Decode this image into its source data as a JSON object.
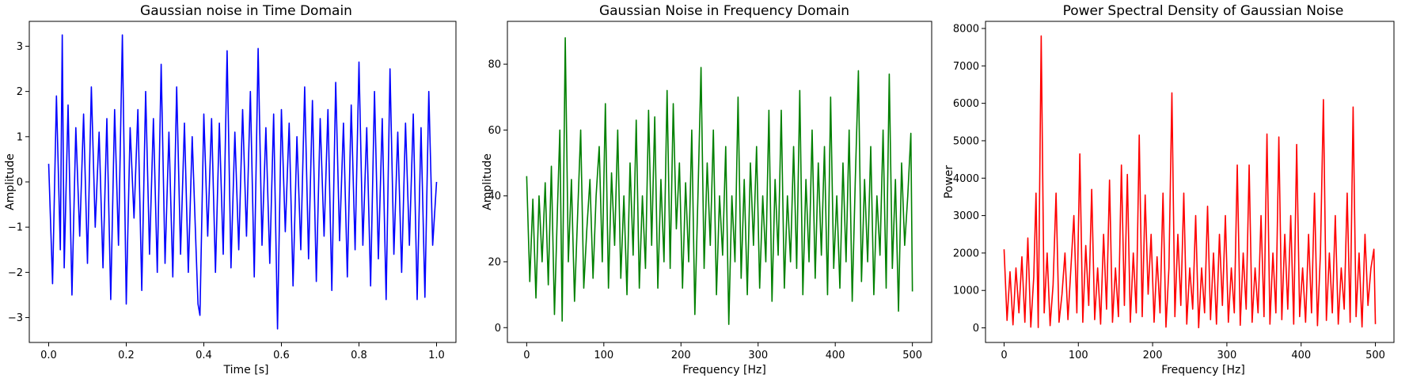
{
  "chart_data": [
    {
      "type": "line",
      "title": "Gaussian noise in Time Domain",
      "xlabel": "Time [s]",
      "ylabel": "Amplitude",
      "xlim": [
        -0.05,
        1.05
      ],
      "ylim": [
        -3.55,
        3.55
      ],
      "xticks": [
        0.0,
        0.2,
        0.4,
        0.6,
        0.8,
        1.0
      ],
      "xtick_labels": [
        "0.0",
        "0.2",
        "0.4",
        "0.6",
        "0.8",
        "1.0"
      ],
      "yticks": [
        -3,
        -2,
        -1,
        0,
        1,
        2,
        3
      ],
      "ytick_labels": [
        "−3",
        "−2",
        "−1",
        "0",
        "1",
        "2",
        "3"
      ],
      "grid": false,
      "series": [
        {
          "color": "#0000ff",
          "x": [
            0.0,
            0.01,
            0.02,
            0.03,
            0.035,
            0.04,
            0.05,
            0.06,
            0.07,
            0.08,
            0.09,
            0.1,
            0.11,
            0.12,
            0.13,
            0.14,
            0.15,
            0.16,
            0.17,
            0.18,
            0.19,
            0.2,
            0.21,
            0.22,
            0.23,
            0.24,
            0.25,
            0.26,
            0.27,
            0.28,
            0.29,
            0.3,
            0.31,
            0.32,
            0.33,
            0.34,
            0.35,
            0.36,
            0.37,
            0.38,
            0.385,
            0.39,
            0.4,
            0.41,
            0.42,
            0.43,
            0.44,
            0.45,
            0.46,
            0.47,
            0.48,
            0.49,
            0.5,
            0.51,
            0.52,
            0.53,
            0.54,
            0.55,
            0.56,
            0.57,
            0.58,
            0.59,
            0.6,
            0.61,
            0.62,
            0.63,
            0.64,
            0.65,
            0.66,
            0.67,
            0.68,
            0.69,
            0.7,
            0.71,
            0.72,
            0.73,
            0.74,
            0.75,
            0.76,
            0.77,
            0.78,
            0.79,
            0.8,
            0.81,
            0.82,
            0.83,
            0.84,
            0.85,
            0.86,
            0.87,
            0.88,
            0.89,
            0.9,
            0.91,
            0.92,
            0.93,
            0.94,
            0.95,
            0.96,
            0.97,
            0.98,
            0.99,
            1.0
          ],
          "values": [
            0.4,
            -2.25,
            1.9,
            -1.5,
            3.25,
            -1.9,
            1.7,
            -2.5,
            1.2,
            -1.2,
            1.5,
            -1.8,
            2.1,
            -1.0,
            1.1,
            -1.9,
            1.4,
            -2.6,
            1.6,
            -1.4,
            3.25,
            -2.7,
            1.2,
            -0.8,
            1.6,
            -2.4,
            2.0,
            -1.6,
            1.4,
            -2.0,
            2.6,
            -1.8,
            1.1,
            -2.1,
            2.1,
            -1.6,
            1.3,
            -2.0,
            1.0,
            -1.5,
            -2.7,
            -2.95,
            1.5,
            -1.2,
            1.4,
            -2.0,
            1.3,
            -1.6,
            2.9,
            -1.9,
            1.1,
            -1.5,
            1.6,
            -1.2,
            2.0,
            -2.1,
            2.95,
            -1.4,
            1.2,
            -1.8,
            1.5,
            -3.25,
            1.6,
            -1.1,
            1.3,
            -2.3,
            1.0,
            -1.5,
            2.1,
            -1.7,
            1.8,
            -2.2,
            1.4,
            -1.2,
            1.6,
            -2.4,
            2.2,
            -1.3,
            1.3,
            -2.1,
            1.7,
            -1.5,
            2.65,
            -1.4,
            1.2,
            -2.3,
            2.0,
            -1.7,
            1.4,
            -2.6,
            2.5,
            -1.6,
            1.1,
            -2.0,
            1.3,
            -1.4,
            1.5,
            -2.6,
            1.2,
            -2.55,
            2.0,
            -1.4,
            0.0
          ]
        }
      ]
    },
    {
      "type": "line",
      "title": "Gaussian Noise in Frequency Domain",
      "xlabel": "Frequency [Hz]",
      "ylabel": "Amplitude",
      "xlim": [
        -25,
        525
      ],
      "ylim": [
        -4.5,
        93
      ],
      "xticks": [
        0,
        100,
        200,
        300,
        400,
        500
      ],
      "xtick_labels": [
        "0",
        "100",
        "200",
        "300",
        "400",
        "500"
      ],
      "yticks": [
        0,
        20,
        40,
        60,
        80
      ],
      "ytick_labels": [
        "0",
        "20",
        "40",
        "60",
        "80"
      ],
      "grid": false,
      "series": [
        {
          "color": "#008000",
          "x": [
            0,
            4,
            8,
            12,
            16,
            20,
            24,
            28,
            32,
            36,
            40,
            43,
            46,
            50,
            54,
            58,
            62,
            66,
            70,
            74,
            78,
            82,
            86,
            90,
            94,
            98,
            102,
            106,
            110,
            114,
            118,
            122,
            126,
            130,
            134,
            138,
            142,
            146,
            150,
            154,
            158,
            162,
            166,
            170,
            174,
            178,
            182,
            186,
            190,
            194,
            198,
            202,
            206,
            210,
            214,
            218,
            222,
            226,
            230,
            234,
            238,
            242,
            246,
            250,
            254,
            258,
            262,
            266,
            270,
            274,
            278,
            282,
            286,
            290,
            294,
            298,
            302,
            306,
            310,
            314,
            318,
            322,
            326,
            330,
            334,
            338,
            342,
            346,
            350,
            354,
            358,
            362,
            366,
            370,
            374,
            378,
            382,
            386,
            390,
            394,
            398,
            402,
            406,
            410,
            414,
            418,
            422,
            426,
            430,
            434,
            438,
            442,
            446,
            450,
            454,
            458,
            462,
            466,
            470,
            474,
            478,
            482,
            486,
            490,
            494,
            498,
            500
          ],
          "values": [
            46,
            14,
            39,
            9,
            40,
            20,
            44,
            13,
            49,
            4,
            37,
            60,
            2,
            88,
            20,
            45,
            8,
            34,
            60,
            12,
            30,
            45,
            15,
            40,
            55,
            20,
            68,
            12,
            47,
            25,
            60,
            15,
            40,
            10,
            50,
            22,
            63,
            12,
            40,
            18,
            66,
            25,
            64,
            12,
            45,
            20,
            72,
            18,
            68,
            30,
            50,
            12,
            44,
            20,
            60,
            4,
            40,
            79,
            18,
            50,
            25,
            60,
            10,
            40,
            22,
            55,
            1,
            40,
            20,
            70,
            15,
            45,
            10,
            50,
            25,
            55,
            12,
            40,
            20,
            66,
            8,
            45,
            22,
            66,
            12,
            40,
            20,
            55,
            18,
            72,
            10,
            45,
            20,
            60,
            15,
            50,
            22,
            55,
            10,
            70,
            18,
            40,
            12,
            50,
            20,
            60,
            8,
            45,
            78,
            14,
            45,
            20,
            55,
            10,
            40,
            22,
            60,
            12,
            77,
            18,
            45,
            5,
            50,
            25,
            40,
            59,
            11
          ]
        }
      ]
    },
    {
      "type": "line",
      "title": "Power Spectral Density of Gaussian Noise",
      "xlabel": "Frequency [Hz]",
      "ylabel": "Power",
      "xlim": [
        -25,
        525
      ],
      "ylim": [
        -390,
        8190
      ],
      "xticks": [
        0,
        100,
        200,
        300,
        400,
        500
      ],
      "xtick_labels": [
        "0",
        "100",
        "200",
        "300",
        "400",
        "500"
      ],
      "yticks": [
        0,
        1000,
        2000,
        3000,
        4000,
        5000,
        6000,
        7000,
        8000
      ],
      "ytick_labels": [
        "0",
        "1000",
        "2000",
        "3000",
        "4000",
        "5000",
        "6000",
        "7000",
        "8000"
      ],
      "grid": false,
      "series": [
        {
          "color": "#ff0000",
          "x": [
            0,
            4,
            8,
            12,
            16,
            20,
            24,
            28,
            32,
            36,
            40,
            43,
            46,
            50,
            54,
            58,
            62,
            66,
            70,
            74,
            78,
            82,
            86,
            90,
            94,
            98,
            102,
            106,
            110,
            114,
            118,
            122,
            126,
            130,
            134,
            138,
            142,
            146,
            150,
            154,
            158,
            162,
            166,
            170,
            174,
            178,
            182,
            186,
            190,
            194,
            198,
            202,
            206,
            210,
            214,
            218,
            222,
            226,
            230,
            234,
            238,
            242,
            246,
            250,
            254,
            258,
            262,
            266,
            270,
            274,
            278,
            282,
            286,
            290,
            294,
            298,
            302,
            306,
            310,
            314,
            318,
            322,
            326,
            330,
            334,
            338,
            342,
            346,
            350,
            354,
            358,
            362,
            366,
            370,
            374,
            378,
            382,
            386,
            390,
            394,
            398,
            402,
            406,
            410,
            414,
            418,
            422,
            426,
            430,
            434,
            438,
            442,
            446,
            450,
            454,
            458,
            462,
            466,
            470,
            474,
            478,
            482,
            486,
            490,
            494,
            498,
            500
          ],
          "values": [
            2100,
            200,
            1500,
            80,
            1600,
            400,
            1900,
            150,
            2400,
            20,
            1370,
            3600,
            10,
            7800,
            400,
            2000,
            60,
            1150,
            3600,
            150,
            900,
            2000,
            220,
            1600,
            3000,
            400,
            4650,
            150,
            2200,
            600,
            3700,
            220,
            1600,
            100,
            2500,
            500,
            3950,
            150,
            1600,
            300,
            4350,
            600,
            4100,
            150,
            2000,
            400,
            5150,
            300,
            3550,
            900,
            2500,
            150,
            1900,
            400,
            3600,
            20,
            1600,
            6280,
            300,
            2500,
            600,
            3600,
            100,
            1600,
            500,
            3000,
            5,
            1600,
            400,
            3250,
            220,
            2000,
            100,
            2500,
            600,
            3000,
            150,
            1600,
            400,
            4350,
            70,
            2000,
            500,
            4350,
            150,
            1600,
            400,
            3000,
            300,
            5180,
            100,
            2000,
            400,
            5100,
            220,
            2500,
            500,
            3000,
            100,
            4900,
            300,
            1600,
            150,
            2500,
            400,
            3600,
            60,
            2000,
            6100,
            200,
            2000,
            400,
            3000,
            100,
            1600,
            500,
            3600,
            150,
            5900,
            300,
            2000,
            25,
            2500,
            600,
            1600,
            2100,
            100
          ]
        }
      ]
    }
  ]
}
